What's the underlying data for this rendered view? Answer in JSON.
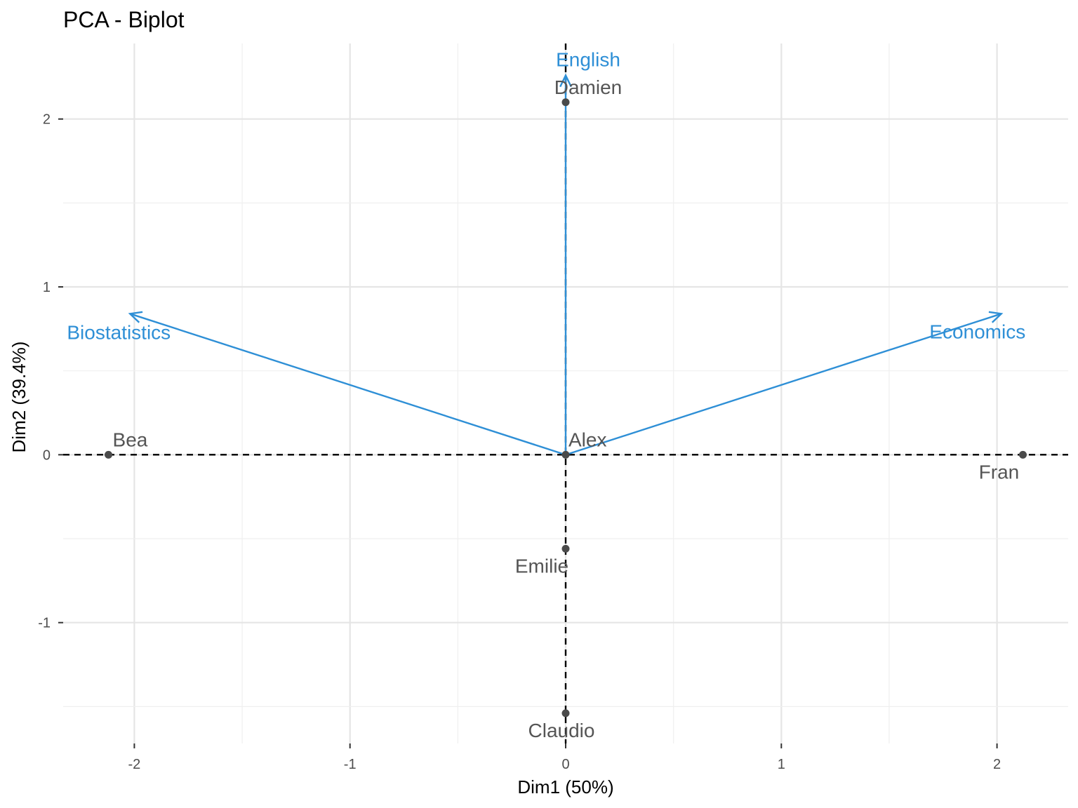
{
  "chart_data": {
    "type": "scatter",
    "title": "PCA - Biplot",
    "xlabel": "Dim1 (50%)",
    "ylabel": "Dim2 (39.4%)",
    "xlim": [
      -2.33,
      2.33
    ],
    "ylim": [
      -1.72,
      2.45
    ],
    "xticks": [
      -2,
      -1,
      0,
      1,
      2
    ],
    "xtick_labels": [
      "-2",
      "-1",
      "0",
      "1",
      "2"
    ],
    "yticks": [
      -1,
      0,
      1,
      2
    ],
    "ytick_labels": [
      "-1",
      "0",
      "1",
      "2"
    ],
    "grid": true,
    "individuals": [
      {
        "name": "Alex",
        "x": 0.0,
        "y": 0.0
      },
      {
        "name": "Bea",
        "x": -2.12,
        "y": 0.0
      },
      {
        "name": "Claudio",
        "x": 0.0,
        "y": -1.54
      },
      {
        "name": "Damien",
        "x": 0.0,
        "y": 2.1
      },
      {
        "name": "Emilie",
        "x": 0.0,
        "y": -0.56
      },
      {
        "name": "Fran",
        "x": 2.12,
        "y": 0.0
      }
    ],
    "variables": [
      {
        "name": "Biostatistics",
        "x": -2.02,
        "y": 0.84
      },
      {
        "name": "English",
        "x": 0.0,
        "y": 2.26
      },
      {
        "name": "Economics",
        "x": 2.02,
        "y": 0.84
      }
    ],
    "colors": {
      "individuals": "#4a4a4a",
      "variables": "#2e8fd6",
      "reference_lines": "#000000"
    }
  }
}
